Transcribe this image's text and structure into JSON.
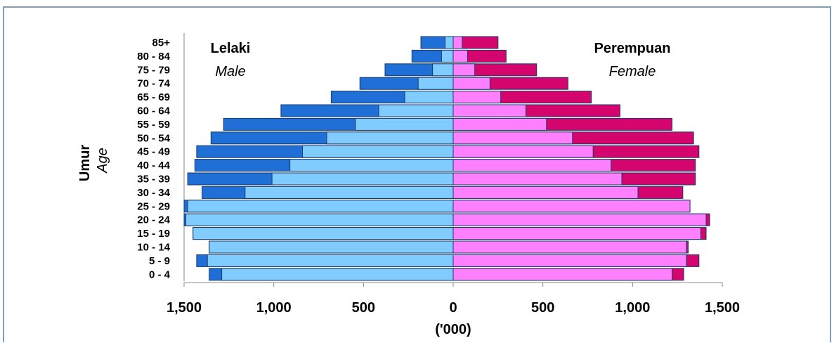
{
  "chart_data": {
    "type": "bar",
    "orientation": "horizontal-pyramid",
    "categories": [
      "0 - 4",
      "5 - 9",
      "10 - 14",
      "15 - 19",
      "20 - 24",
      "25 - 29",
      "30 - 34",
      "35 - 39",
      "40 - 44",
      "45 - 49",
      "50 - 54",
      "55 - 59",
      "60 - 64",
      "65 - 69",
      "70 - 74",
      "75 - 79",
      "80 - 84",
      "85+"
    ],
    "male_total": [
      1360,
      1430,
      1360,
      1450,
      1500,
      1500,
      1400,
      1480,
      1440,
      1430,
      1350,
      1280,
      960,
      680,
      520,
      380,
      230,
      180
    ],
    "male_inner": [
      1290,
      1370,
      1360,
      1450,
      1490,
      1480,
      1160,
      1010,
      910,
      840,
      705,
      545,
      415,
      270,
      195,
      115,
      65,
      45
    ],
    "female_total": [
      1285,
      1370,
      1310,
      1410,
      1430,
      1320,
      1280,
      1350,
      1350,
      1370,
      1340,
      1220,
      930,
      770,
      640,
      465,
      295,
      250
    ],
    "female_inner": [
      1220,
      1300,
      1300,
      1380,
      1410,
      1320,
      1030,
      940,
      880,
      780,
      665,
      520,
      405,
      265,
      205,
      120,
      80,
      50
    ],
    "male_label": "Lelaki",
    "male_sublabel": "Male",
    "female_label": "Perempuan",
    "female_sublabel": "Female",
    "ylabel": "Umur",
    "ylabel_sub": "Age",
    "xlabel": "('000)",
    "xticks": [
      1500,
      1000,
      500,
      0,
      500,
      1000,
      1500
    ],
    "xtick_labels": [
      "1,500",
      "1,000",
      "500",
      "0",
      "500",
      "1,000",
      "1,500"
    ],
    "xlim": [
      -1500,
      1500
    ],
    "colors": {
      "male_outer": "#1f6fd6",
      "male_inner": "#80ccff",
      "female_outer": "#d4066e",
      "female_inner": "#ff80ff",
      "stroke": "#1a3a6a"
    }
  }
}
